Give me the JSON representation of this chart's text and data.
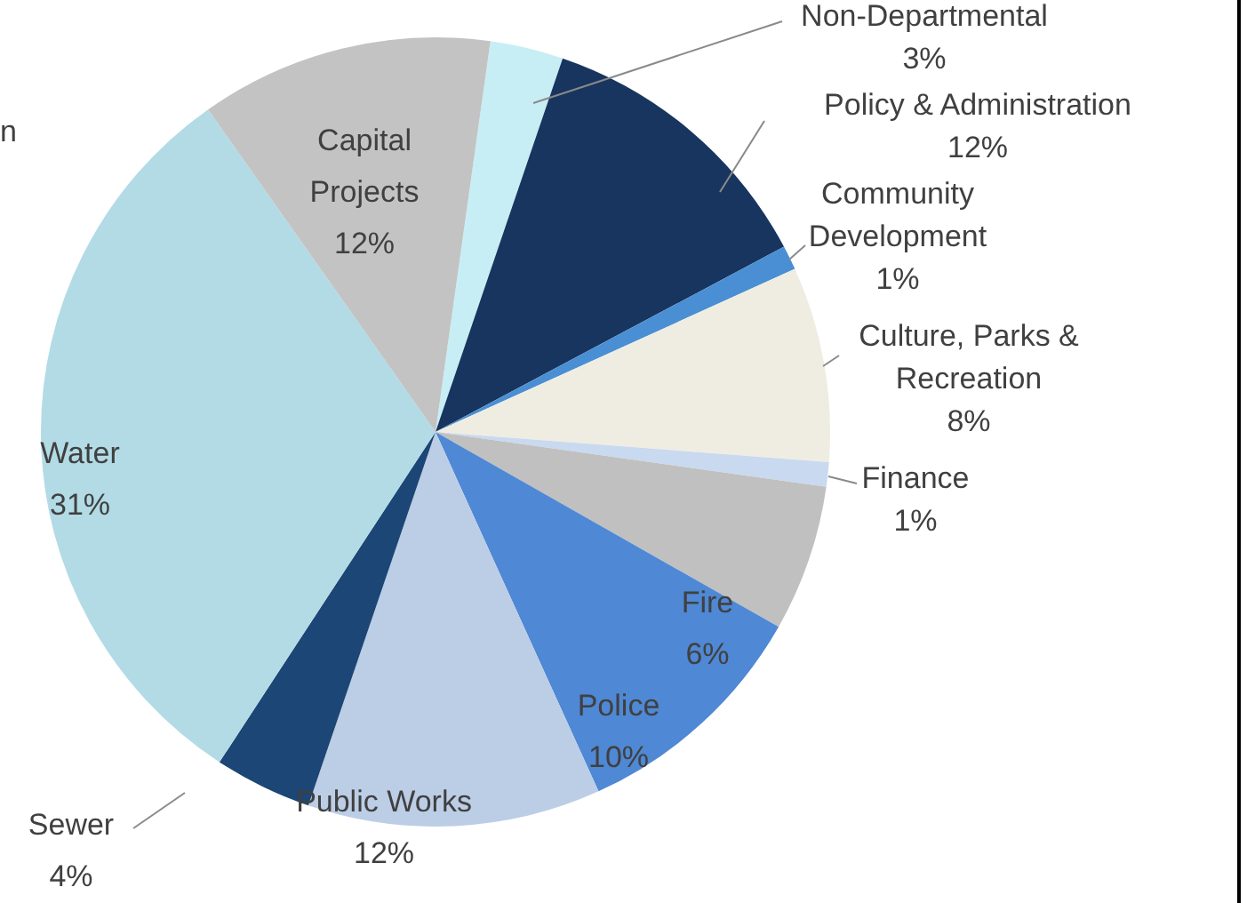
{
  "chart_data": {
    "type": "pie",
    "categories": [
      "Non-Departmental",
      "Policy & Administration",
      "Community Development",
      "Culture, Parks & Recreation",
      "Finance",
      "Fire",
      "Police",
      "Public Works",
      "Sewer",
      "Water",
      "Capital Projects"
    ],
    "values": [
      3,
      12,
      1,
      8,
      1,
      6,
      10,
      12,
      4,
      31,
      12
    ],
    "colors": [
      "#c8eef5",
      "#17355f",
      "#4a8fd4",
      "#efede2",
      "#c9d9ef",
      "#c0c0c0",
      "#4f88d4",
      "#bccde6",
      "#1b4676",
      "#b2dbe6",
      "#c3c3c3"
    ],
    "value_labels": [
      "3%",
      "12%",
      "1%",
      "8%",
      "1%",
      "6%",
      "10%",
      "12%",
      "4%",
      "31%",
      "12%"
    ],
    "legend": false,
    "annotations": [
      "n"
    ]
  }
}
